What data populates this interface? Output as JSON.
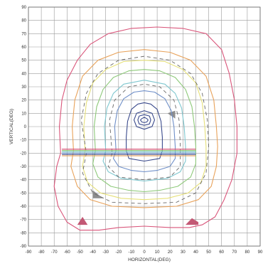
{
  "chart_data": {
    "type": "line",
    "title": "",
    "xlabel": "HORIZONTAL(DEG)",
    "ylabel": "VERTICAL(DEG)",
    "xlim": [
      -90,
      90
    ],
    "ylim": [
      -90,
      90
    ],
    "grid": true,
    "legend": "none",
    "x_ticks": [
      -90,
      -80,
      -70,
      -60,
      -50,
      -40,
      -30,
      -20,
      -10,
      0,
      10,
      20,
      30,
      40,
      50,
      60,
      70,
      80,
      90
    ],
    "y_ticks": [
      90,
      80,
      70,
      60,
      50,
      40,
      30,
      20,
      10,
      0,
      -10,
      -20,
      -30,
      -40,
      -50,
      -60,
      -70,
      -80,
      -90
    ],
    "colors": {
      "outer": "#d9557a",
      "orange": "#e8a25a",
      "yellow": "#e6e07a",
      "green": "#8ec97a",
      "cyan": "#7fc7cf",
      "blue": "#6f8fc8",
      "navy": "#3a4a8c",
      "grey": "#666666",
      "fill_grey": "#888888",
      "fill_pink": "#c0506e"
    },
    "series": [
      {
        "color_key": "outer",
        "points": [
          [
            -65,
            -20
          ],
          [
            -68,
            -30
          ],
          [
            -70,
            -45
          ],
          [
            -67,
            -60
          ],
          [
            -60,
            -72
          ],
          [
            -50,
            -78
          ],
          [
            -35,
            -78
          ],
          [
            -20,
            -76
          ],
          [
            0,
            -75
          ],
          [
            20,
            -76
          ],
          [
            35,
            -76
          ],
          [
            45,
            -74
          ],
          [
            55,
            -68
          ],
          [
            62,
            -55
          ],
          [
            68,
            -40
          ],
          [
            72,
            -20
          ],
          [
            72,
            0
          ],
          [
            70,
            20
          ],
          [
            66,
            40
          ],
          [
            60,
            58
          ],
          [
            48,
            70
          ],
          [
            30,
            74
          ],
          [
            10,
            75
          ],
          [
            -10,
            74
          ],
          [
            -28,
            70
          ],
          [
            -42,
            62
          ],
          [
            -52,
            50
          ],
          [
            -60,
            35
          ],
          [
            -64,
            20
          ],
          [
            -66,
            0
          ],
          [
            -65,
            -20
          ]
        ]
      },
      {
        "color_key": "orange",
        "points": [
          [
            -55,
            -18
          ],
          [
            -57,
            -30
          ],
          [
            -52,
            -45
          ],
          [
            -42,
            -55
          ],
          [
            -25,
            -60
          ],
          [
            0,
            -61
          ],
          [
            25,
            -60
          ],
          [
            42,
            -55
          ],
          [
            52,
            -45
          ],
          [
            56,
            -30
          ],
          [
            57,
            -15
          ],
          [
            56,
            0
          ],
          [
            54,
            20
          ],
          [
            48,
            38
          ],
          [
            36,
            50
          ],
          [
            20,
            56
          ],
          [
            0,
            58
          ],
          [
            -20,
            56
          ],
          [
            -36,
            50
          ],
          [
            -48,
            38
          ],
          [
            -54,
            20
          ],
          [
            -56,
            0
          ],
          [
            -55,
            -18
          ]
        ]
      },
      {
        "color_key": "yellow",
        "points": [
          [
            -46,
            -18
          ],
          [
            -48,
            -30
          ],
          [
            -44,
            -42
          ],
          [
            -34,
            -50
          ],
          [
            -18,
            -54
          ],
          [
            0,
            -55
          ],
          [
            18,
            -54
          ],
          [
            34,
            -50
          ],
          [
            44,
            -42
          ],
          [
            48,
            -30
          ],
          [
            48,
            -15
          ],
          [
            47,
            0
          ],
          [
            45,
            18
          ],
          [
            40,
            33
          ],
          [
            30,
            43
          ],
          [
            16,
            49
          ],
          [
            0,
            50
          ],
          [
            -16,
            49
          ],
          [
            -30,
            43
          ],
          [
            -40,
            33
          ],
          [
            -45,
            18
          ],
          [
            -47,
            0
          ],
          [
            -46,
            -18
          ]
        ]
      },
      {
        "color_key": "green",
        "points": [
          [
            -38,
            -18
          ],
          [
            -40,
            -28
          ],
          [
            -36,
            -38
          ],
          [
            -26,
            -45
          ],
          [
            -12,
            -48
          ],
          [
            0,
            -49
          ],
          [
            12,
            -48
          ],
          [
            26,
            -45
          ],
          [
            36,
            -38
          ],
          [
            40,
            -28
          ],
          [
            40,
            -15
          ],
          [
            39,
            0
          ],
          [
            37,
            15
          ],
          [
            32,
            28
          ],
          [
            24,
            37
          ],
          [
            12,
            42
          ],
          [
            0,
            43
          ],
          [
            -12,
            42
          ],
          [
            -24,
            37
          ],
          [
            -32,
            28
          ],
          [
            -37,
            15
          ],
          [
            -39,
            0
          ],
          [
            -38,
            -18
          ]
        ]
      },
      {
        "color_key": "cyan",
        "points": [
          [
            -30,
            -18
          ],
          [
            -32,
            -26
          ],
          [
            -28,
            -34
          ],
          [
            -18,
            -39
          ],
          [
            0,
            -41
          ],
          [
            18,
            -39
          ],
          [
            28,
            -34
          ],
          [
            32,
            -26
          ],
          [
            32,
            -15
          ],
          [
            31,
            0
          ],
          [
            29,
            14
          ],
          [
            24,
            25
          ],
          [
            16,
            32
          ],
          [
            0,
            35
          ],
          [
            -16,
            32
          ],
          [
            -24,
            25
          ],
          [
            -29,
            14
          ],
          [
            -31,
            0
          ],
          [
            -30,
            -18
          ]
        ]
      },
      {
        "color_key": "blue",
        "points": [
          [
            -22,
            -18
          ],
          [
            -24,
            -24
          ],
          [
            -20,
            -30
          ],
          [
            -10,
            -33
          ],
          [
            0,
            -34
          ],
          [
            10,
            -33
          ],
          [
            20,
            -30
          ],
          [
            24,
            -24
          ],
          [
            24,
            -15
          ],
          [
            23,
            0
          ],
          [
            21,
            12
          ],
          [
            16,
            21
          ],
          [
            8,
            26
          ],
          [
            0,
            27
          ],
          [
            -8,
            26
          ],
          [
            -16,
            21
          ],
          [
            -21,
            12
          ],
          [
            -23,
            0
          ],
          [
            -22,
            -18
          ]
        ]
      },
      {
        "color_key": "navy",
        "points": [
          [
            -14,
            -18
          ],
          [
            -12,
            -24
          ],
          [
            0,
            -26
          ],
          [
            12,
            -24
          ],
          [
            14,
            -18
          ],
          [
            14,
            -8
          ],
          [
            13,
            4
          ],
          [
            10,
            13
          ],
          [
            5,
            17
          ],
          [
            0,
            18
          ],
          [
            -5,
            17
          ],
          [
            -10,
            13
          ],
          [
            -13,
            4
          ],
          [
            -14,
            -8
          ],
          [
            -14,
            -18
          ]
        ]
      },
      {
        "color_key": "navy",
        "points": [
          [
            -6,
            10
          ],
          [
            0,
            12
          ],
          [
            6,
            10
          ],
          [
            8,
            5
          ],
          [
            6,
            0
          ],
          [
            0,
            -2
          ],
          [
            -6,
            0
          ],
          [
            -8,
            5
          ],
          [
            -6,
            10
          ]
        ]
      },
      {
        "color_key": "navy",
        "points": [
          [
            -4,
            8
          ],
          [
            0,
            9
          ],
          [
            4,
            8
          ],
          [
            5,
            5
          ],
          [
            4,
            2
          ],
          [
            0,
            1
          ],
          [
            -4,
            2
          ],
          [
            -5,
            5
          ],
          [
            -4,
            8
          ]
        ]
      },
      {
        "color_key": "navy",
        "points": [
          [
            -2,
            6
          ],
          [
            0,
            7
          ],
          [
            2,
            6
          ],
          [
            3,
            5
          ],
          [
            2,
            3.5
          ],
          [
            0,
            3
          ],
          [
            -2,
            3.5
          ],
          [
            -3,
            5
          ],
          [
            -2,
            6
          ]
        ]
      },
      {
        "color_key": "grey",
        "dashed": true,
        "points": [
          [
            -45,
            -20
          ],
          [
            -48,
            -35
          ],
          [
            -40,
            -50
          ],
          [
            -25,
            -57
          ],
          [
            0,
            -58
          ],
          [
            25,
            -57
          ],
          [
            40,
            -50
          ],
          [
            48,
            -35
          ],
          [
            50,
            -15
          ],
          [
            49,
            5
          ],
          [
            45,
            25
          ],
          [
            36,
            40
          ],
          [
            20,
            50
          ],
          [
            0,
            53
          ],
          [
            -20,
            50
          ],
          [
            -36,
            40
          ],
          [
            -45,
            25
          ],
          [
            -49,
            5
          ],
          [
            -45,
            -20
          ]
        ]
      },
      {
        "color_key": "grey",
        "dashed": true,
        "points": [
          [
            -25,
            -20
          ],
          [
            -28,
            -30
          ],
          [
            -20,
            -38
          ],
          [
            0,
            -40
          ],
          [
            20,
            -38
          ],
          [
            28,
            -30
          ],
          [
            28,
            -15
          ],
          [
            27,
            5
          ],
          [
            23,
            20
          ],
          [
            12,
            30
          ],
          [
            0,
            32
          ],
          [
            -12,
            30
          ],
          [
            -23,
            20
          ],
          [
            -27,
            5
          ],
          [
            -25,
            -20
          ]
        ]
      }
    ],
    "bands": [
      {
        "color_key": "green",
        "y": -18
      },
      {
        "color_key": "cyan",
        "y": -19
      },
      {
        "color_key": "blue",
        "y": -20
      },
      {
        "color_key": "navy",
        "y": -21
      },
      {
        "color_key": "orange",
        "y": -22
      },
      {
        "color_key": "outer",
        "y": -17
      }
    ],
    "fills": [
      {
        "color_key": "fill_pink",
        "points": [
          [
            -52,
            -74
          ],
          [
            -48,
            -68
          ],
          [
            -44,
            -74
          ]
        ]
      },
      {
        "color_key": "fill_pink",
        "points": [
          [
            32,
            -74
          ],
          [
            37,
            -69
          ],
          [
            42,
            -72
          ],
          [
            42,
            -74
          ]
        ]
      },
      {
        "color_key": "fill_grey",
        "points": [
          [
            -40,
            -54
          ],
          [
            -40,
            -48
          ],
          [
            -32,
            -54
          ]
        ]
      },
      {
        "color_key": "fill_grey",
        "points": [
          [
            18,
            10
          ],
          [
            24,
            12
          ],
          [
            24,
            6
          ]
        ]
      }
    ]
  }
}
